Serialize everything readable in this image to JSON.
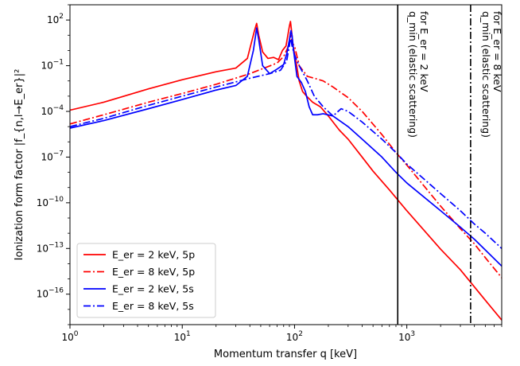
{
  "chart_data": {
    "type": "line",
    "title": "",
    "xlabel": "Momentum transfer q [keV]",
    "ylabel": "Ionization form factor |f_{n,l→E_er}|²",
    "xscale": "log",
    "yscale": "log",
    "xlim": [
      1,
      7000
    ],
    "ylim": [
      1e-18,
      1000.0
    ],
    "grid": false,
    "legend_position": "lower-left",
    "x_ticks": [
      {
        "value": 1,
        "base": "10",
        "exp": "0"
      },
      {
        "value": 10,
        "base": "10",
        "exp": "1"
      },
      {
        "value": 100,
        "base": "10",
        "exp": "2"
      },
      {
        "value": 1000,
        "base": "10",
        "exp": "3"
      }
    ],
    "y_ticks": [
      {
        "value": 100,
        "base": "10",
        "exp": "2"
      },
      {
        "value": 0.1,
        "base": "10",
        "exp": "−1"
      },
      {
        "value": 0.0001,
        "base": "10",
        "exp": "−4"
      },
      {
        "value": 1e-07,
        "base": "10",
        "exp": "−7"
      },
      {
        "value": 1e-10,
        "base": "10",
        "exp": "−10"
      },
      {
        "value": 1e-13,
        "base": "10",
        "exp": "−13"
      },
      {
        "value": 1e-16,
        "base": "10",
        "exp": "−16"
      }
    ],
    "series": [
      {
        "name": "E_er = 2 keV, 5p",
        "color": "#ff0000",
        "style": "solid",
        "points": [
          [
            1,
            0.00012
          ],
          [
            2,
            0.0004
          ],
          [
            5,
            0.003
          ],
          [
            10,
            0.012
          ],
          [
            20,
            0.04
          ],
          [
            30,
            0.07
          ],
          [
            38,
            0.3
          ],
          [
            44,
            20
          ],
          [
            46,
            60
          ],
          [
            48,
            10
          ],
          [
            52,
            0.8
          ],
          [
            58,
            0.3
          ],
          [
            65,
            0.35
          ],
          [
            72,
            0.25
          ],
          [
            78,
            1
          ],
          [
            84,
            2
          ],
          [
            88,
            15
          ],
          [
            90,
            40
          ],
          [
            92,
            80
          ],
          [
            94,
            20
          ],
          [
            97,
            2
          ],
          [
            102,
            0.3
          ],
          [
            110,
            0.01
          ],
          [
            118,
            0.002
          ],
          [
            128,
            0.001
          ],
          [
            145,
            0.0004
          ],
          [
            170,
            0.0002
          ],
          [
            200,
            5e-05
          ],
          [
            250,
            6e-06
          ],
          [
            300,
            1.5e-06
          ],
          [
            400,
            1e-07
          ],
          [
            500,
            1.2e-08
          ],
          [
            700,
            7e-10
          ],
          [
            1000,
            3e-11
          ],
          [
            2000,
            9e-14
          ],
          [
            3000,
            4e-15
          ],
          [
            5000,
            4e-17
          ],
          [
            7000,
            2e-18
          ]
        ]
      },
      {
        "name": "E_er = 8 keV, 5p",
        "color": "#ff0000",
        "style": "dashdot",
        "points": [
          [
            1,
            1.5e-05
          ],
          [
            2,
            6e-05
          ],
          [
            5,
            0.0004
          ],
          [
            10,
            0.0015
          ],
          [
            20,
            0.006
          ],
          [
            40,
            0.03
          ],
          [
            70,
            0.15
          ],
          [
            80,
            0.4
          ],
          [
            87,
            1.5
          ],
          [
            90,
            5
          ],
          [
            92,
            15
          ],
          [
            95,
            3
          ],
          [
            100,
            2
          ],
          [
            110,
            0.1
          ],
          [
            130,
            0.02
          ],
          [
            150,
            0.015
          ],
          [
            180,
            0.01
          ],
          [
            220,
            0.004
          ],
          [
            300,
            0.0008
          ],
          [
            400,
            0.0001
          ],
          [
            600,
            3e-06
          ],
          [
            800,
            2e-07
          ],
          [
            1000,
            3e-08
          ],
          [
            2000,
            6e-11
          ],
          [
            3000,
            2e-12
          ],
          [
            4000,
            2e-13
          ],
          [
            5000,
            2.5e-14
          ],
          [
            7000,
            1.2e-15
          ]
        ]
      },
      {
        "name": "E_er = 2 keV, 5s",
        "color": "#0000ff",
        "style": "solid",
        "points": [
          [
            1,
            8e-06
          ],
          [
            2,
            2.5e-05
          ],
          [
            5,
            0.00015
          ],
          [
            10,
            0.0006
          ],
          [
            20,
            0.0025
          ],
          [
            30,
            0.005
          ],
          [
            38,
            0.02
          ],
          [
            43,
            1
          ],
          [
            46,
            30
          ],
          [
            48,
            5
          ],
          [
            52,
            0.1
          ],
          [
            60,
            0.03
          ],
          [
            70,
            0.06
          ],
          [
            80,
            0.12
          ],
          [
            86,
            0.8
          ],
          [
            90,
            5
          ],
          [
            93,
            20
          ],
          [
            95,
            10
          ],
          [
            98,
            1
          ],
          [
            105,
            0.02
          ],
          [
            115,
            0.008
          ],
          [
            125,
            0.002
          ],
          [
            135,
            0.0002
          ],
          [
            145,
            6e-05
          ],
          [
            160,
            6e-05
          ],
          [
            180,
            7e-05
          ],
          [
            220,
            5e-05
          ],
          [
            300,
            1e-05
          ],
          [
            400,
            1.5e-06
          ],
          [
            600,
            1e-07
          ],
          [
            800,
            1e-08
          ],
          [
            1000,
            2e-09
          ],
          [
            2000,
            3e-11
          ],
          [
            3000,
            2.5e-12
          ],
          [
            4000,
            4e-13
          ],
          [
            5000,
            8e-14
          ],
          [
            7000,
            7e-15
          ]
        ]
      },
      {
        "name": "E_er = 8 keV, 5s",
        "color": "#0000ff",
        "style": "dashdot",
        "points": [
          [
            1,
            1e-05
          ],
          [
            2,
            3.5e-05
          ],
          [
            5,
            0.00025
          ],
          [
            10,
            0.001
          ],
          [
            20,
            0.004
          ],
          [
            40,
            0.015
          ],
          [
            60,
            0.03
          ],
          [
            75,
            0.05
          ],
          [
            85,
            0.2
          ],
          [
            90,
            2
          ],
          [
            92,
            8
          ],
          [
            95,
            2
          ],
          [
            100,
            0.5
          ],
          [
            110,
            0.1
          ],
          [
            130,
            0.01
          ],
          [
            150,
            0.001
          ],
          [
            180,
            0.0002
          ],
          [
            220,
            5e-05
          ],
          [
            260,
            0.00015
          ],
          [
            300,
            0.0001
          ],
          [
            400,
            2e-05
          ],
          [
            600,
            1.5e-06
          ],
          [
            800,
            2e-07
          ],
          [
            1000,
            3.5e-08
          ],
          [
            2000,
            4e-10
          ],
          [
            3000,
            3e-11
          ],
          [
            4000,
            4e-12
          ],
          [
            5000,
            1e-12
          ],
          [
            7000,
            1e-13
          ]
        ]
      }
    ],
    "vlines": [
      {
        "x": 830,
        "style": "solid",
        "label_line1": "q_min (elastic scattering)",
        "label_line2": "for E_er = 2 keV"
      },
      {
        "x": 3700,
        "style": "dashdot",
        "label_line1": "q_min (elastic scattering)",
        "label_line2": "for E_er = 8 keV"
      }
    ]
  }
}
